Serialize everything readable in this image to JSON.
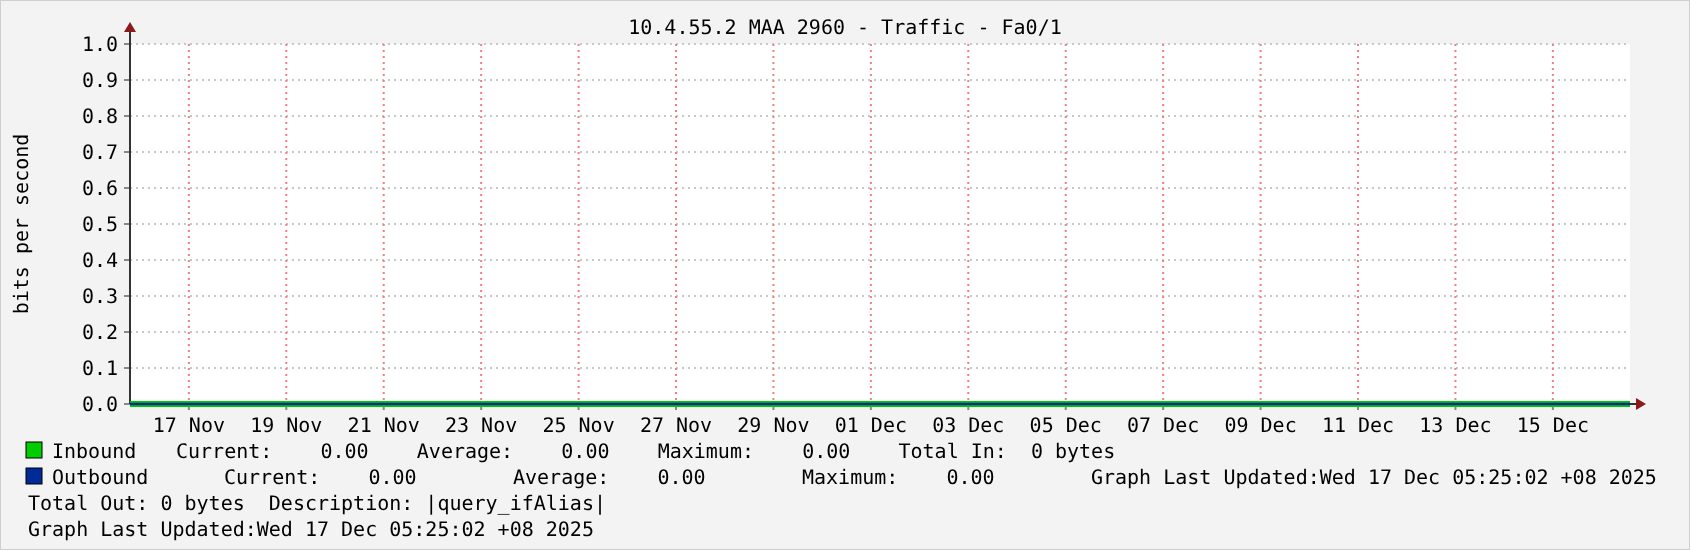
{
  "chart_data": {
    "type": "line",
    "title": "10.4.55.2 MAA 2960 - Traffic - Fa0/1",
    "ylabel": "bits per second",
    "x": [
      "2025-11-15T19:00",
      "2025-12-16T14:00"
    ],
    "series": [
      {
        "name": "Inbound",
        "color": "#00cc00",
        "values": [
          0,
          0
        ]
      },
      {
        "name": "Outbound",
        "color": "#002a97",
        "values": [
          0,
          0
        ]
      }
    ],
    "xlim": [
      "2025-11-15T19:00",
      "2025-12-16T14:00"
    ],
    "xticks": [
      {
        "value": "2025-11-17",
        "label": "17 Nov"
      },
      {
        "value": "2025-11-19",
        "label": "19 Nov"
      },
      {
        "value": "2025-11-21",
        "label": "21 Nov"
      },
      {
        "value": "2025-11-23",
        "label": "23 Nov"
      },
      {
        "value": "2025-11-25",
        "label": "25 Nov"
      },
      {
        "value": "2025-11-27",
        "label": "27 Nov"
      },
      {
        "value": "2025-11-29",
        "label": "29 Nov"
      },
      {
        "value": "2025-12-01",
        "label": "01 Dec"
      },
      {
        "value": "2025-12-03",
        "label": "03 Dec"
      },
      {
        "value": "2025-12-05",
        "label": "05 Dec"
      },
      {
        "value": "2025-12-07",
        "label": "07 Dec"
      },
      {
        "value": "2025-12-09",
        "label": "09 Dec"
      },
      {
        "value": "2025-12-11",
        "label": "11 Dec"
      },
      {
        "value": "2025-12-13",
        "label": "13 Dec"
      },
      {
        "value": "2025-12-15",
        "label": "15 Dec"
      }
    ],
    "ylim": [
      0,
      1
    ],
    "yticks": [
      {
        "value": 0,
        "label": "0.0"
      },
      {
        "value": 0.1,
        "label": "0.1"
      },
      {
        "value": 0.2,
        "label": "0.2"
      },
      {
        "value": 0.3,
        "label": "0.3"
      },
      {
        "value": 0.4,
        "label": "0.4"
      },
      {
        "value": 0.5,
        "label": "0.5"
      },
      {
        "value": 0.6,
        "label": "0.6"
      },
      {
        "value": 0.7,
        "label": "0.7"
      },
      {
        "value": 0.8,
        "label": "0.8"
      },
      {
        "value": 0.9,
        "label": "0.9"
      },
      {
        "value": 1,
        "label": "1.0"
      }
    ],
    "grid": true,
    "legend": "bottom",
    "marker": "none",
    "line_style": "solid",
    "annotations": [
      "Current:    0.00    Average:    0.00    Maximum:    0.00    Total In:  0 bytes",
      "Current:    0.00        Average:    0.00        Maximum:    0.00        Graph Last Updated:Wed 17 Dec 05:25:02 +08 2025",
      "Total Out: 0 bytes  Description: |query_ifAlias|",
      "Graph Last Updated:Wed 17 Dec 05:25:02 +08 2025"
    ]
  }
}
